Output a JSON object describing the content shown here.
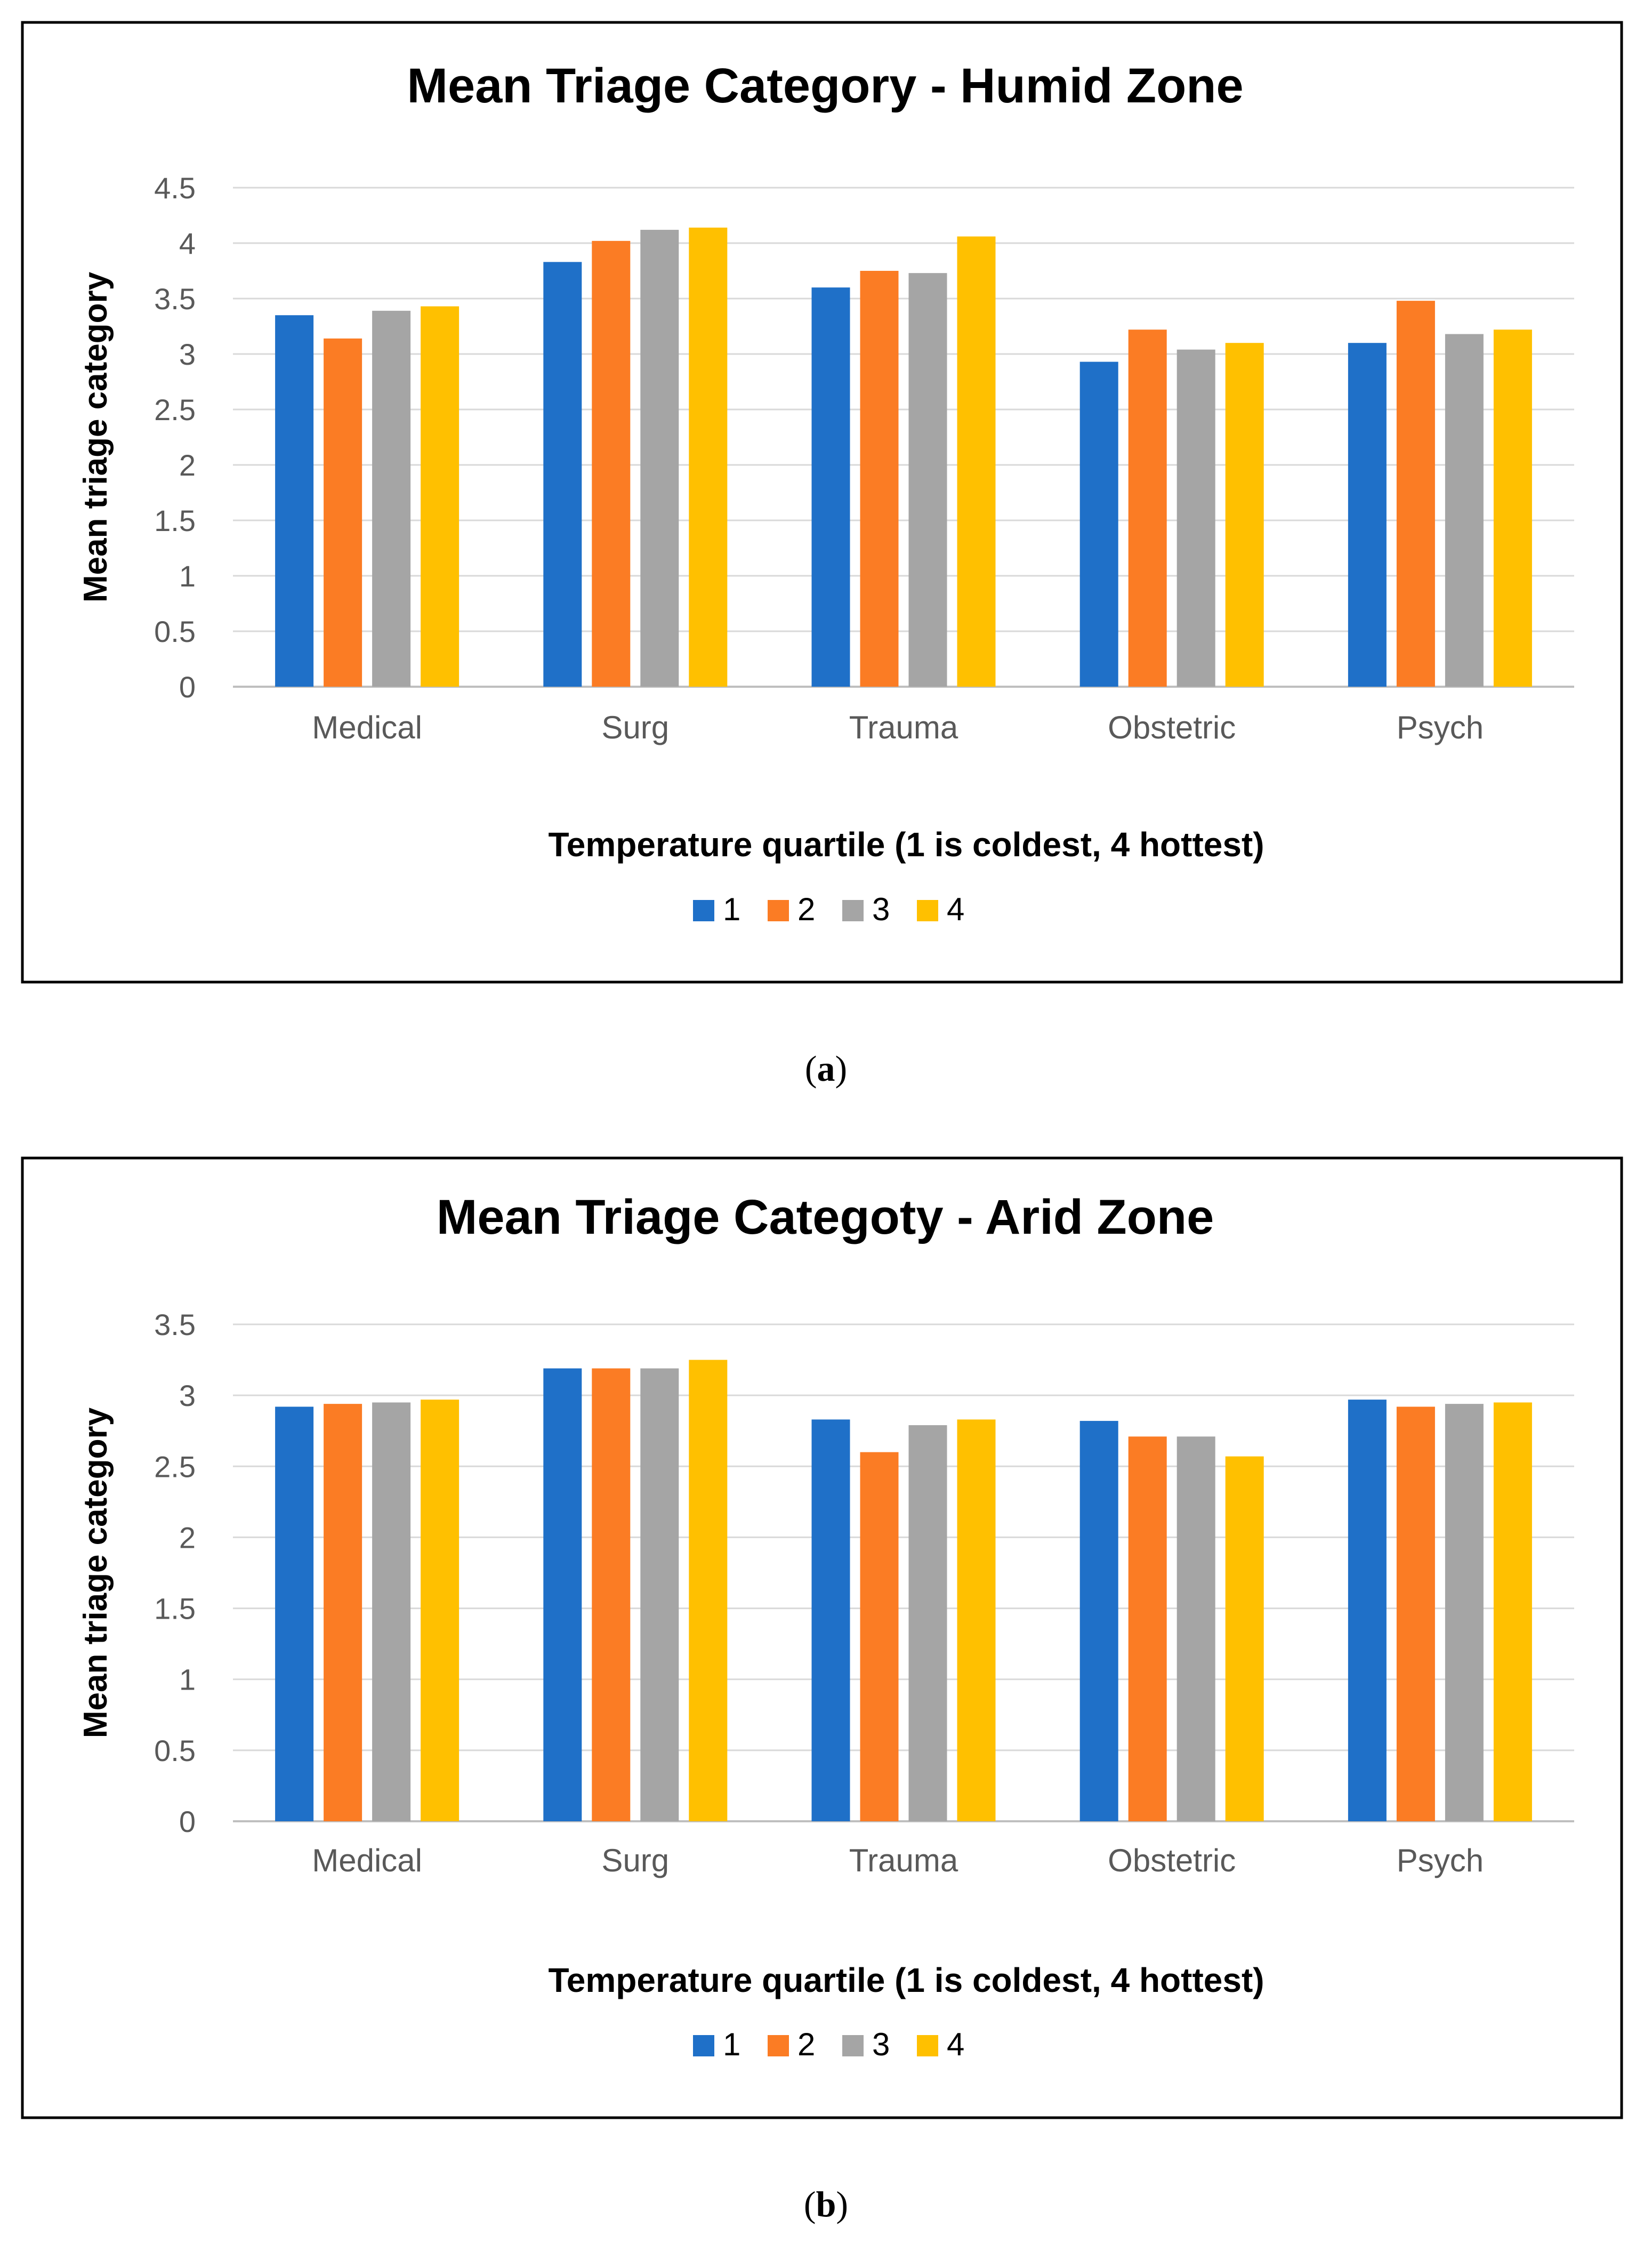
{
  "colors": {
    "series": [
      "#1f70c8",
      "#fb7c24",
      "#a5a5a5",
      "#ffc000"
    ],
    "grid": "#d9d9d9",
    "axis": "#bfbfbf",
    "text": "#595959",
    "frame": "#000000"
  },
  "chart_data": [
    {
      "type": "bar",
      "title": "Mean Triage Category - Humid Zone",
      "xlabel": "Temperature quartile  (1 is coldest, 4 hottest)",
      "ylabel": "Mean triage category",
      "categories": [
        "Medical",
        "Surg",
        "Trauma",
        "Obstetric",
        "Psych"
      ],
      "ylim": [
        0,
        4.5
      ],
      "yticks": [
        0,
        0.5,
        1,
        1.5,
        2,
        2.5,
        3,
        3.5,
        4,
        4.5
      ],
      "ytick_labels": [
        "0",
        "0.5",
        "1",
        "1.5",
        "2",
        "2.5",
        "3",
        "3.5",
        "4",
        "4.5"
      ],
      "grid": true,
      "legend": "bottom",
      "series": [
        {
          "name": "1",
          "values": [
            3.35,
            3.83,
            3.6,
            2.93,
            3.1
          ]
        },
        {
          "name": "2",
          "values": [
            3.14,
            4.02,
            3.75,
            3.22,
            3.48
          ]
        },
        {
          "name": "3",
          "values": [
            3.39,
            4.12,
            3.73,
            3.04,
            3.18
          ]
        },
        {
          "name": "4",
          "values": [
            3.43,
            4.14,
            4.06,
            3.1,
            3.22
          ]
        }
      ],
      "panel_label": "a"
    },
    {
      "type": "bar",
      "title": "Mean Triage Categoty - Arid Zone",
      "xlabel": "Temperature quartile  (1 is coldest, 4 hottest)",
      "ylabel": "Mean triage category",
      "categories": [
        "Medical",
        "Surg",
        "Trauma",
        "Obstetric",
        "Psych"
      ],
      "ylim": [
        0,
        3.5
      ],
      "yticks": [
        0,
        0.5,
        1,
        1.5,
        2,
        2.5,
        3,
        3.5
      ],
      "ytick_labels": [
        "0",
        "0.5",
        "1",
        "1.5",
        "2",
        "2.5",
        "3",
        "3.5"
      ],
      "grid": true,
      "legend": "bottom",
      "series": [
        {
          "name": "1",
          "values": [
            2.92,
            3.19,
            2.83,
            2.82,
            2.97
          ]
        },
        {
          "name": "2",
          "values": [
            2.94,
            3.19,
            2.6,
            2.71,
            2.92
          ]
        },
        {
          "name": "3",
          "values": [
            2.95,
            3.19,
            2.79,
            2.71,
            2.94
          ]
        },
        {
          "name": "4",
          "values": [
            2.97,
            3.25,
            2.83,
            2.57,
            2.95
          ]
        }
      ],
      "panel_label": "b"
    }
  ]
}
